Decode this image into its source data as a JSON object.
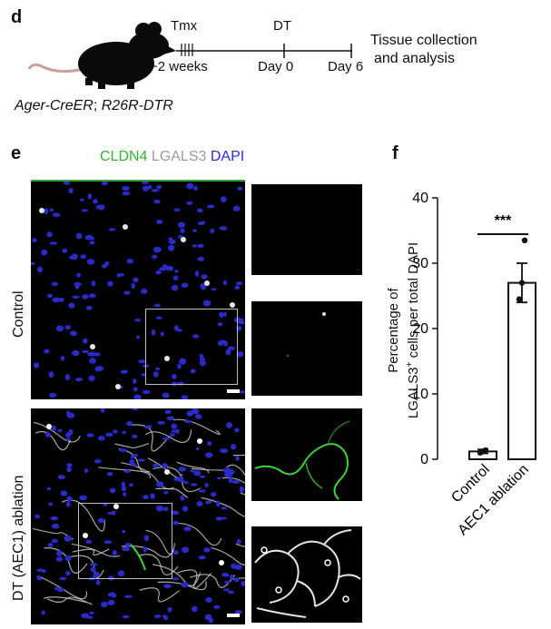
{
  "panel_d": {
    "letter": "d",
    "tmx_label": "Tmx",
    "dt_label": "DT",
    "minus2_label": "−2 weeks",
    "day0_label": "Day 0",
    "day6_label": "Day 6",
    "outcome_line1": "Tissue collection",
    "outcome_line2": "and analysis",
    "genotype_part1": "Ager-CreER",
    "genotype_sep": "; ",
    "genotype_part2": "R26R-DTR",
    "mouse_icon": "mouse-icon"
  },
  "panel_e": {
    "letter": "e",
    "legend": [
      {
        "text": "CLDN4",
        "color": "#2fb52f"
      },
      {
        "text": " LGALS3",
        "color": "#9a9a9a"
      },
      {
        "text": " DAPI",
        "color": "#2c2cd8"
      }
    ],
    "row_control": "Control",
    "row_dt": "DT (AEC1) ablation",
    "colors": {
      "dapi": "#2a2ac8",
      "lgals3": "#e6e6e6",
      "cldn4": "#3ad43a"
    }
  },
  "panel_f": {
    "letter": "f",
    "ylabel_line1": "Percentage of",
    "ylabel_line2_pre": "LGALS3",
    "ylabel_line2_sup": "+",
    "ylabel_line2_post": " cells per total DAPI",
    "significance": "***"
  },
  "chart_data": {
    "type": "bar",
    "categories": [
      "Control",
      "AEC1 ablation"
    ],
    "values": [
      1.2,
      27
    ],
    "errors": [
      0.3,
      3
    ],
    "points": [
      [
        1.0,
        1.2,
        1.4
      ],
      [
        24.5,
        27,
        33.5
      ]
    ],
    "ylim": [
      0,
      40
    ],
    "yticks": [
      0,
      10,
      20,
      30,
      40
    ],
    "ylabel": "Percentage of LGALS3+ cells per total DAPI",
    "annotation": "***"
  }
}
